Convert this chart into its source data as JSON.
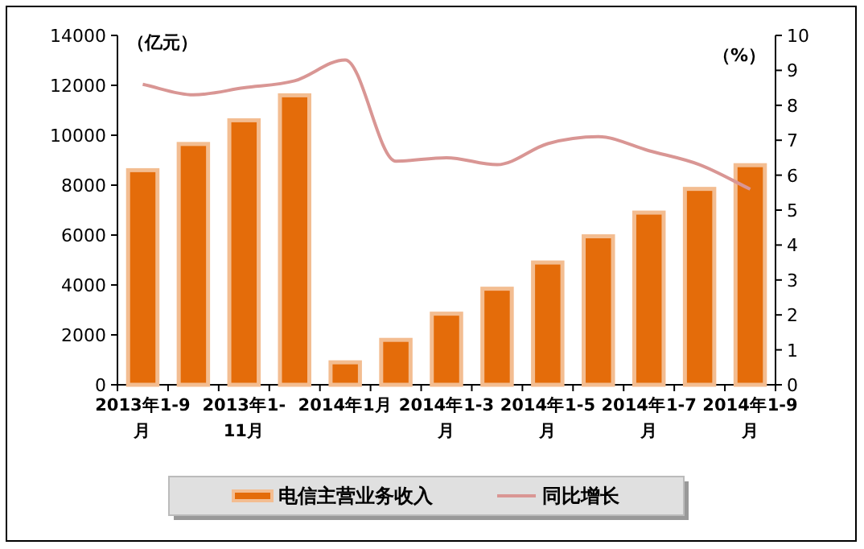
{
  "chart_data": {
    "type": "bar",
    "ylabel": "（亿元）",
    "y2label": "（%）",
    "categories": [
      "2013年1-9月",
      null,
      "2013年1-11月",
      null,
      "2014年1月",
      null,
      "2014年1-3月",
      null,
      "2014年1-5月",
      null,
      "2014年1-7月",
      null,
      "2014年1-9月"
    ],
    "series": [
      {
        "name": "电信主营业务收入",
        "color": "#e46c0a",
        "values": [
          8600,
          9650,
          10600,
          11600,
          900,
          1800,
          2850,
          3850,
          4900,
          5950,
          6900,
          7850,
          8800
        ]
      },
      {
        "name": "同比增长",
        "type": "line",
        "axis": "y2",
        "color": "#d99694",
        "values": [
          8.6,
          8.3,
          8.5,
          8.7,
          9.3,
          6.4,
          6.5,
          6.3,
          6.9,
          7.1,
          6.7,
          6.3,
          5.6
        ]
      }
    ],
    "ylim": [
      0,
      14000
    ],
    "yticks": [
      0,
      2000,
      4000,
      6000,
      8000,
      10000,
      12000,
      14000
    ],
    "y2lim": [
      0,
      10
    ],
    "y2ticks": [
      0,
      1,
      2,
      3,
      4,
      5,
      6,
      7,
      8,
      9,
      10
    ],
    "legend": "bottom",
    "grid": false
  }
}
